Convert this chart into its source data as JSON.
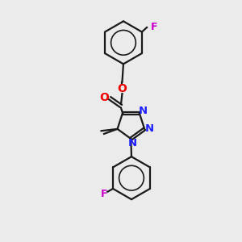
{
  "bg_color": "#ebebeb",
  "bond_color": "#1a1a1a",
  "N_color": "#2020ff",
  "O_color": "#ee0000",
  "F_color": "#cc00cc",
  "line_width": 1.6,
  "figsize": [
    3.0,
    3.0
  ],
  "dpi": 100,
  "xlim": [
    0,
    10
  ],
  "ylim": [
    0,
    10
  ]
}
